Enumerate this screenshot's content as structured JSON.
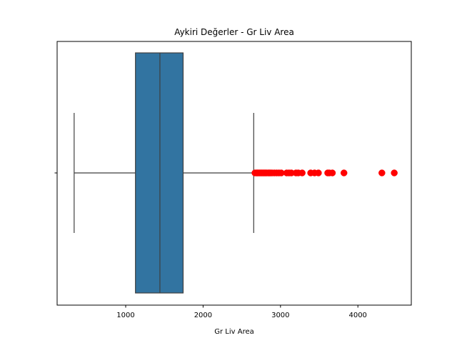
{
  "chart_data": {
    "type": "boxplot",
    "title": "Aykiri Değerler - Gr Liv Area",
    "xlabel": "Gr Liv Area",
    "ylabel": "",
    "xlim": [
      114,
      4690
    ],
    "x_ticks": [
      1000,
      2000,
      3000,
      4000
    ],
    "grid": false,
    "box": {
      "whisker_low": 334,
      "q1": 1126,
      "median": 1442,
      "q3": 1742,
      "whisker_high": 2654,
      "color": "#3274a1",
      "edge_color": "#3f3f3f"
    },
    "outliers": {
      "color": "#ff0000",
      "values": [
        2670,
        2690,
        2700,
        2715,
        2730,
        2745,
        2760,
        2775,
        2790,
        2805,
        2820,
        2840,
        2855,
        2870,
        2890,
        2920,
        2950,
        2980,
        3010,
        3080,
        3110,
        3140,
        3200,
        3230,
        3280,
        3390,
        3440,
        3490,
        3610,
        3630,
        3670,
        3820,
        4310,
        4470
      ]
    }
  }
}
